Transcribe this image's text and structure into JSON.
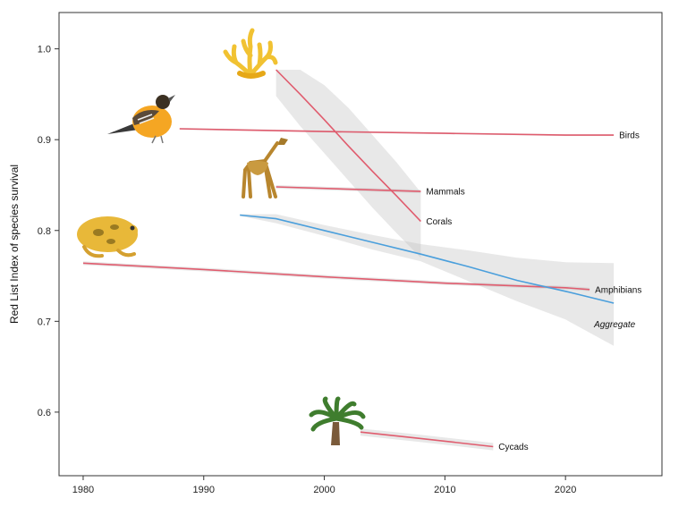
{
  "chart_data": {
    "type": "line",
    "title": "",
    "xlabel": "",
    "ylabel": "Red List Index of species survival",
    "xlim": [
      1978,
      2028
    ],
    "ylim": [
      0.53,
      1.04
    ],
    "xticks": [
      1980,
      1990,
      2000,
      2010,
      2020
    ],
    "yticks": [
      0.6,
      0.7,
      0.8,
      0.9,
      1.0
    ],
    "ytick_labels": [
      "0.6",
      "0.7",
      "0.8",
      "0.9",
      "1.0"
    ],
    "grid": false,
    "series": [
      {
        "name": "Birds",
        "color": "#e05c6e",
        "x": [
          1988,
          2000,
          2010,
          2020,
          2024
        ],
        "y": [
          0.912,
          0.909,
          0.907,
          0.905,
          0.905
        ],
        "upper": [
          0.913,
          0.91,
          0.908,
          0.906,
          0.906
        ],
        "lower": [
          0.911,
          0.908,
          0.906,
          0.904,
          0.904
        ],
        "icon": "bird-icon"
      },
      {
        "name": "Mammals",
        "color": "#e05c6e",
        "x": [
          1996,
          2008
        ],
        "y": [
          0.848,
          0.843
        ],
        "upper": [
          0.85,
          0.845
        ],
        "lower": [
          0.846,
          0.841
        ],
        "icon": "giraffe-icon"
      },
      {
        "name": "Corals",
        "color": "#e05c6e",
        "x": [
          1996,
          1998,
          2000,
          2002,
          2004,
          2006,
          2008
        ],
        "y": [
          0.977,
          0.95,
          0.922,
          0.893,
          0.865,
          0.838,
          0.81
        ],
        "upper": [
          0.977,
          0.977,
          0.96,
          0.935,
          0.905,
          0.875,
          0.842
        ],
        "lower": [
          0.948,
          0.915,
          0.885,
          0.855,
          0.825,
          0.797,
          0.77
        ],
        "icon": "coral-icon"
      },
      {
        "name": "Amphibians",
        "color": "#e05c6e",
        "x": [
          1980,
          1990,
          2000,
          2010,
          2020,
          2022
        ],
        "y": [
          0.764,
          0.757,
          0.749,
          0.742,
          0.737,
          0.735
        ],
        "upper": [
          0.766,
          0.759,
          0.751,
          0.744,
          0.739,
          0.737
        ],
        "lower": [
          0.762,
          0.755,
          0.747,
          0.74,
          0.735,
          0.733
        ],
        "icon": "frog-icon"
      },
      {
        "name": "Cycads",
        "color": "#e05c6e",
        "x": [
          2003,
          2008,
          2014
        ],
        "y": [
          0.578,
          0.571,
          0.562
        ],
        "upper": [
          0.582,
          0.575,
          0.566
        ],
        "lower": [
          0.574,
          0.567,
          0.558
        ],
        "icon": "cycad-icon"
      },
      {
        "name": "Aggregate",
        "color": "#4a9fdc",
        "label_color": "#2a63b8",
        "italic": true,
        "x": [
          1993,
          1996,
          2000,
          2004,
          2008,
          2012,
          2016,
          2020,
          2024
        ],
        "y": [
          0.817,
          0.813,
          0.8,
          0.787,
          0.774,
          0.76,
          0.745,
          0.733,
          0.72
        ],
        "upper": [
          0.818,
          0.818,
          0.806,
          0.795,
          0.785,
          0.778,
          0.77,
          0.765,
          0.764
        ],
        "lower": [
          0.816,
          0.808,
          0.794,
          0.779,
          0.766,
          0.744,
          0.722,
          0.702,
          0.673
        ]
      }
    ]
  }
}
